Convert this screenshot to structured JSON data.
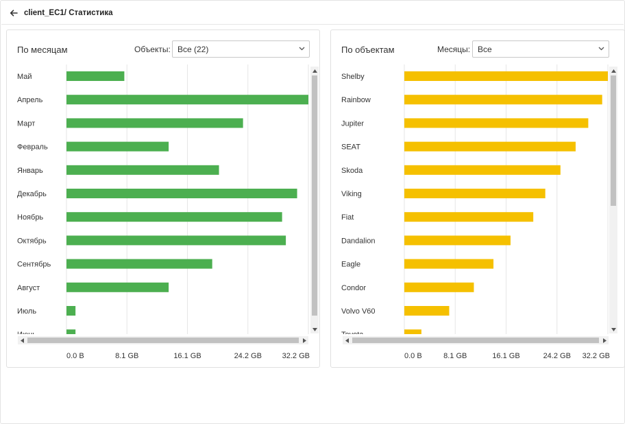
{
  "header": {
    "title": "client_EC1/ Статистика",
    "back_icon": "arrow-left-icon"
  },
  "left_panel": {
    "title": "По месяцам",
    "filter_label": "Объекты:",
    "filter_value": "Все (22)"
  },
  "right_panel": {
    "title": "По объектам",
    "filter_label": "Месяцы:",
    "filter_value": "Все"
  },
  "colors": {
    "left_bar": "#4caf50",
    "right_bar": "#f5c000",
    "grid": "#e6e6e6",
    "scroll_thumb": "#c1c1c1",
    "scroll_track": "#f1f1f1"
  },
  "chart_data": [
    {
      "type": "bar",
      "orientation": "horizontal",
      "title": "По месяцам",
      "categories": [
        "Май",
        "Апрель",
        "Март",
        "Февраль",
        "Январь",
        "Декабрь",
        "Ноябрь",
        "Октябрь",
        "Сентябрь",
        "Август",
        "Июль",
        "Июнь"
      ],
      "values": [
        7.7,
        32.2,
        23.5,
        13.6,
        20.3,
        30.7,
        28.7,
        29.2,
        19.4,
        13.6,
        1.2,
        1.2
      ],
      "unit": "GB",
      "xlim": [
        0,
        32.2
      ],
      "xticks": [
        "0.0 B",
        "8.1 GB",
        "16.1 GB",
        "24.2 GB",
        "32.2 GB"
      ],
      "grid": true
    },
    {
      "type": "bar",
      "orientation": "horizontal",
      "title": "По объектам",
      "categories": [
        "Shelby",
        "Rainbow",
        "Jupiter",
        "SEAT",
        "Skoda",
        "Viking",
        "Fiat",
        "Dandalion",
        "Eagle",
        "Condor",
        "Volvo V60",
        "Toyota"
      ],
      "values": [
        32.2,
        31.3,
        29.1,
        27.1,
        24.7,
        22.3,
        20.4,
        16.8,
        14.1,
        11.0,
        7.1,
        2.7
      ],
      "unit": "GB",
      "xlim": [
        0,
        32.2
      ],
      "xticks": [
        "0.0 B",
        "8.1 GB",
        "16.1 GB",
        "24.2 GB",
        "32.2 GB"
      ],
      "grid": true
    }
  ]
}
